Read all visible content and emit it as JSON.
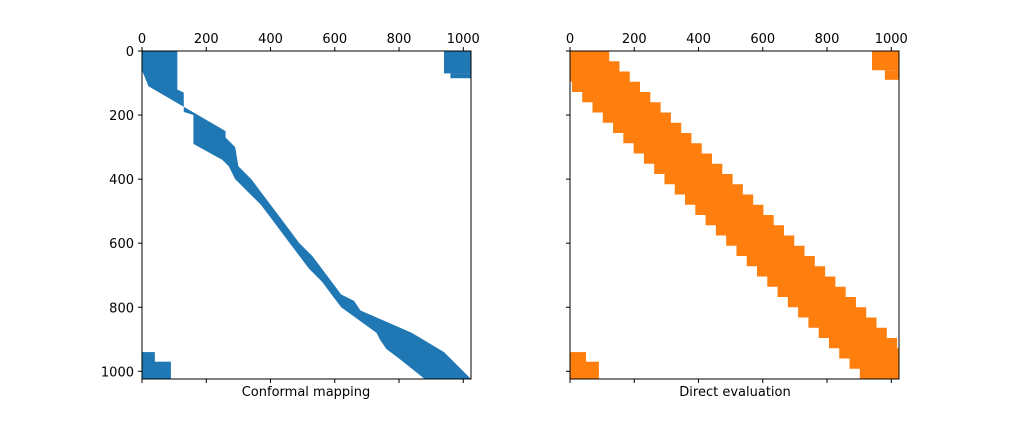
{
  "chart_data": [
    {
      "type": "heatmap",
      "subtype": "sparsity-pattern",
      "xlabel": "Conformal mapping",
      "color": "#1f77b4",
      "xlim": [
        0,
        1024
      ],
      "ylim": [
        1024,
        0
      ],
      "x_ticks": [
        0,
        200,
        400,
        600,
        800,
        1000
      ],
      "y_ticks": [
        0,
        200,
        400,
        600,
        800,
        1000
      ],
      "y_tick_labels_visible": true,
      "band_upper": [
        [
          0,
          110
        ],
        [
          120,
          110
        ],
        [
          130,
          130
        ],
        [
          190,
          130
        ],
        [
          200,
          160
        ],
        [
          290,
          160
        ],
        [
          340,
          250
        ],
        [
          360,
          270
        ],
        [
          400,
          290
        ],
        [
          440,
          330
        ],
        [
          480,
          370
        ],
        [
          520,
          400
        ],
        [
          560,
          430
        ],
        [
          600,
          460
        ],
        [
          640,
          490
        ],
        [
          680,
          520
        ],
        [
          720,
          560
        ],
        [
          760,
          590
        ],
        [
          800,
          620
        ],
        [
          880,
          730
        ],
        [
          900,
          740
        ],
        [
          930,
          760
        ],
        [
          960,
          800
        ],
        [
          1024,
          880
        ]
      ],
      "band_lower": [
        [
          0,
          0
        ],
        [
          60,
          0
        ],
        [
          110,
          20
        ],
        [
          250,
          260
        ],
        [
          270,
          260
        ],
        [
          300,
          290
        ],
        [
          360,
          300
        ],
        [
          400,
          340
        ],
        [
          440,
          370
        ],
        [
          480,
          400
        ],
        [
          520,
          430
        ],
        [
          560,
          460
        ],
        [
          600,
          490
        ],
        [
          640,
          530
        ],
        [
          680,
          560
        ],
        [
          720,
          590
        ],
        [
          760,
          620
        ],
        [
          780,
          660
        ],
        [
          810,
          680
        ],
        [
          880,
          840
        ],
        [
          940,
          940
        ],
        [
          960,
          960
        ],
        [
          1024,
          1024
        ]
      ],
      "corner_blocks": [
        {
          "x": [
            940,
            1024
          ],
          "y": [
            0,
            70
          ]
        },
        {
          "x": [
            960,
            1024
          ],
          "y": [
            70,
            85
          ]
        },
        {
          "x": [
            0,
            40
          ],
          "y": [
            940,
            1024
          ]
        },
        {
          "x": [
            0,
            90
          ],
          "y": [
            970,
            1024
          ]
        }
      ]
    },
    {
      "type": "heatmap",
      "subtype": "sparsity-pattern",
      "xlabel": "Direct evaluation",
      "color": "#ff7f0e",
      "xlim": [
        0,
        1024
      ],
      "ylim": [
        1024,
        0
      ],
      "x_ticks": [
        0,
        200,
        400,
        600,
        800,
        1000
      ],
      "y_ticks": [
        0,
        200,
        400,
        600,
        800,
        1000
      ],
      "y_tick_labels_visible": false,
      "band_half_width": 90,
      "band_step": 32,
      "corner_blocks": [
        {
          "x": [
            940,
            1024
          ],
          "y": [
            0,
            60
          ]
        },
        {
          "x": [
            980,
            1024
          ],
          "y": [
            60,
            90
          ]
        },
        {
          "x": [
            0,
            50
          ],
          "y": [
            940,
            1024
          ]
        },
        {
          "x": [
            0,
            90
          ],
          "y": [
            970,
            1024
          ]
        }
      ]
    }
  ]
}
